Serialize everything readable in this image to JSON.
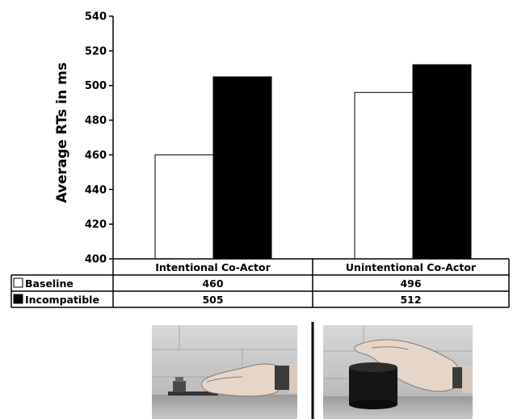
{
  "chart_data": {
    "type": "bar",
    "ylabel": "Average RTs in ms",
    "ylim": [
      400,
      540
    ],
    "yticks": [
      400,
      420,
      440,
      460,
      480,
      500,
      520,
      540
    ],
    "categories": [
      "Intentional Co-Actor",
      "Unintentional Co-Actor"
    ],
    "series": [
      {
        "name": "Baseline",
        "values": [
          460,
          496
        ],
        "color": "#ffffff"
      },
      {
        "name": "Incompatible",
        "values": [
          505,
          512
        ],
        "color": "#000000"
      }
    ],
    "legend": "table-left",
    "grid": false
  },
  "table": {
    "rows": [
      {
        "label": "Baseline",
        "values": [
          "460",
          "496"
        ],
        "swatch": "#ffffff"
      },
      {
        "label": "Incompatible",
        "values": [
          "505",
          "512"
        ],
        "swatch": "#000000"
      }
    ]
  },
  "photos": [
    {
      "name": "intentional-co-actor-photo",
      "object": "small device"
    },
    {
      "name": "unintentional-co-actor-photo",
      "object": "black cylinder"
    }
  ]
}
